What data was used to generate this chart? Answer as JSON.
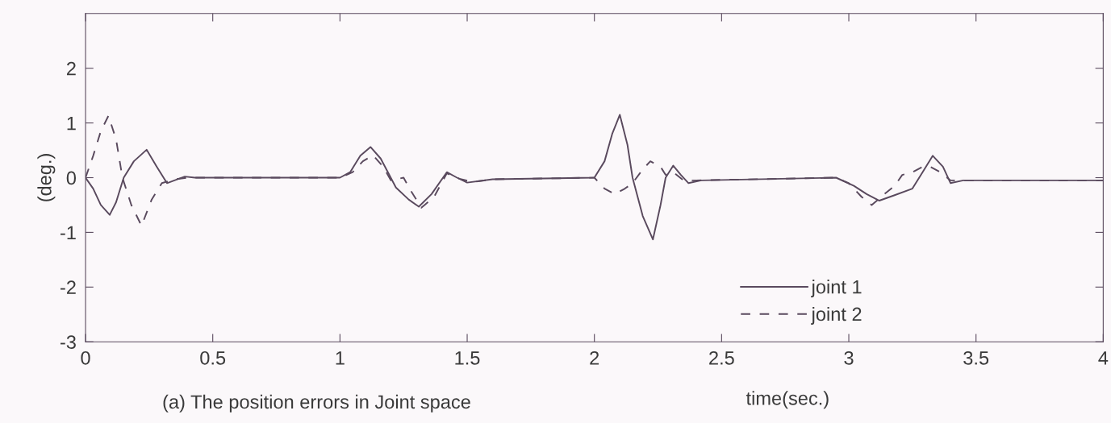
{
  "chart_data": {
    "type": "line",
    "xlabel": "time(sec.)",
    "ylabel": "(deg.)",
    "annotations": [
      "(a) The position errors in Joint space"
    ],
    "xlim": [
      0,
      4
    ],
    "ylim": [
      -3,
      3
    ],
    "xticks": [
      0,
      0.5,
      1,
      1.5,
      2,
      2.5,
      3,
      3.5,
      4
    ],
    "yticks": [
      -3,
      -2,
      -1,
      0,
      1,
      2
    ],
    "grid": false,
    "legend": "bottom right",
    "marker": "none",
    "series": [
      {
        "name": "joint 1",
        "color": "#5a4a5e",
        "line_style": "solid",
        "x": [
          0,
          0.03,
          0.06,
          0.095,
          0.12,
          0.15,
          0.19,
          0.24,
          0.28,
          0.32,
          0.36,
          0.39,
          0.43,
          1.0,
          1.04,
          1.08,
          1.12,
          1.16,
          1.22,
          1.27,
          1.31,
          1.36,
          1.42,
          1.46,
          1.5,
          1.6,
          2.0,
          2.04,
          2.07,
          2.1,
          2.13,
          2.15,
          2.19,
          2.23,
          2.26,
          2.28,
          2.31,
          2.34,
          2.37,
          2.42,
          2.95,
          3.02,
          3.07,
          3.12,
          3.18,
          3.25,
          3.29,
          3.33,
          3.37,
          3.4,
          3.45,
          4.0
        ],
        "values": [
          0,
          -0.2,
          -0.5,
          -0.68,
          -0.45,
          0,
          0.3,
          0.51,
          0.2,
          -0.1,
          -0.03,
          0.02,
          0,
          0,
          0.1,
          0.4,
          0.56,
          0.35,
          -0.18,
          -0.4,
          -0.53,
          -0.3,
          0.1,
          0.0,
          -0.09,
          -0.03,
          0,
          0.3,
          0.8,
          1.15,
          0.6,
          0,
          -0.7,
          -1.13,
          -0.5,
          0,
          0.22,
          0.05,
          -0.1,
          -0.05,
          0,
          -0.15,
          -0.3,
          -0.42,
          -0.32,
          -0.2,
          0.1,
          0.4,
          0.2,
          -0.1,
          -0.05,
          -0.05
        ]
      },
      {
        "name": "joint 2",
        "color": "#5a4a5e",
        "line_style": "dashed",
        "x": [
          0,
          0.03,
          0.06,
          0.09,
          0.12,
          0.145,
          0.18,
          0.22,
          0.26,
          0.3,
          0.35,
          0.4,
          1.0,
          1.05,
          1.09,
          1.13,
          1.17,
          1.2,
          1.25,
          1.28,
          1.32,
          1.37,
          1.42,
          1.47,
          1.52,
          1.6,
          2.0,
          2.04,
          2.08,
          2.12,
          2.15,
          2.19,
          2.22,
          2.26,
          2.28,
          2.31,
          2.35,
          2.4,
          2.95,
          3.0,
          3.05,
          3.09,
          3.14,
          3.18,
          3.21,
          3.25,
          3.29,
          3.32,
          3.36,
          3.4,
          3.45,
          4.0
        ],
        "values": [
          0,
          0.4,
          0.85,
          1.13,
          0.7,
          0,
          -0.5,
          -0.88,
          -0.4,
          -0.1,
          -0.03,
          0,
          0,
          0.1,
          0.3,
          0.41,
          0.2,
          -0.05,
          0.0,
          -0.25,
          -0.55,
          -0.35,
          0.08,
          -0.02,
          -0.08,
          -0.03,
          0,
          -0.2,
          -0.3,
          -0.2,
          -0.1,
          0.15,
          0.3,
          0.2,
          0.05,
          0.1,
          -0.05,
          -0.05,
          0,
          -0.1,
          -0.35,
          -0.5,
          -0.3,
          -0.15,
          0.05,
          0.1,
          0.2,
          0.2,
          0.1,
          -0.05,
          -0.05,
          -0.05
        ]
      }
    ]
  }
}
